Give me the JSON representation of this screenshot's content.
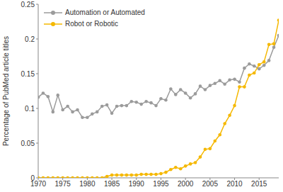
{
  "chart_data": {
    "type": "line",
    "ylabel": "Percentage of PubMed article titles",
    "x": [
      1970,
      1971,
      1972,
      1973,
      1974,
      1975,
      1976,
      1977,
      1978,
      1979,
      1980,
      1981,
      1982,
      1983,
      1984,
      1985,
      1986,
      1987,
      1988,
      1989,
      1990,
      1991,
      1992,
      1993,
      1994,
      1995,
      1996,
      1997,
      1998,
      1999,
      2000,
      2001,
      2002,
      2003,
      2004,
      2005,
      2006,
      2007,
      2008,
      2009,
      2010,
      2011,
      2012,
      2013,
      2014,
      2015,
      2016,
      2017,
      2018,
      2019
    ],
    "series": [
      {
        "name": "Automation or Automated",
        "color": "#9b9b9b",
        "marker": "circle",
        "values": [
          0.116,
          0.122,
          0.117,
          0.095,
          0.119,
          0.098,
          0.103,
          0.095,
          0.098,
          0.087,
          0.087,
          0.092,
          0.095,
          0.103,
          0.105,
          0.093,
          0.103,
          0.104,
          0.104,
          0.11,
          0.109,
          0.106,
          0.11,
          0.108,
          0.104,
          0.114,
          0.112,
          0.128,
          0.12,
          0.127,
          0.122,
          0.115,
          0.121,
          0.132,
          0.127,
          0.133,
          0.136,
          0.14,
          0.135,
          0.141,
          0.142,
          0.138,
          0.158,
          0.164,
          0.161,
          0.157,
          0.162,
          0.169,
          0.188,
          0.205
        ]
      },
      {
        "name": "Robot or Robotic",
        "color": "#f5b800",
        "marker": "circle",
        "values": [
          0,
          0,
          0,
          0,
          0,
          0,
          0,
          0,
          0,
          0,
          0,
          0,
          0,
          0,
          0.002,
          0.004,
          0.004,
          0.004,
          0.004,
          0.004,
          0.004,
          0.005,
          0.005,
          0.005,
          0.005,
          0.006,
          0.008,
          0.012,
          0.015,
          0.013,
          0.017,
          0.02,
          0.022,
          0.03,
          0.041,
          0.042,
          0.053,
          0.062,
          0.078,
          0.09,
          0.104,
          0.131,
          0.131,
          0.148,
          0.151,
          0.163,
          0.167,
          0.192,
          0.193,
          0.227
        ]
      }
    ],
    "xlim": [
      1970,
      2019
    ],
    "xticks": [
      1970,
      1975,
      1980,
      1985,
      1990,
      1995,
      2000,
      2005,
      2010,
      2015
    ],
    "ylim": [
      0,
      0.25
    ],
    "yticks": [
      0,
      0.05,
      0.1,
      0.15,
      0.2,
      0.25
    ],
    "grid": false,
    "legend": "upper left"
  }
}
